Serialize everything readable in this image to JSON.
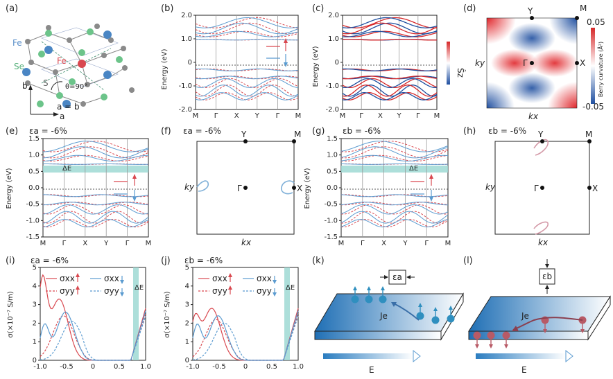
{
  "panels": {
    "a": {
      "label": "(a)",
      "fe_up": "Fe",
      "fe_down": "Fe",
      "se": "Se",
      "s": "S",
      "theta": "θ=90°",
      "b": "b",
      "a": "a",
      "eq": "a = b"
    },
    "b": {
      "label": "(b)",
      "ylabel": "Energy (eV)",
      "yticks": [
        "2.0",
        "1.0",
        "0",
        "-1.0",
        "-2.0"
      ],
      "xticks": [
        "M",
        "Γ",
        "X",
        "Y",
        "Γ",
        "M"
      ]
    },
    "c": {
      "label": "(c)",
      "ylabel": "Energy (eV)",
      "yticks": [
        "2.0",
        "1.0",
        "0",
        "-1.0",
        "-2.0"
      ],
      "xticks": [
        "M",
        "Γ",
        "X",
        "Y",
        "Γ",
        "M"
      ],
      "cbar_label": "Ŝz"
    },
    "d": {
      "label": "(d)",
      "Y": "Y",
      "M": "M",
      "G": "Γ",
      "X": "X",
      "ky": "ky",
      "kx": "kx",
      "cbar_max": "0.05",
      "cbar_min": "-0.05",
      "cbar_label": "Berry curvature (Å²)"
    },
    "e": {
      "label": "(e)",
      "strain": "εa = -6%",
      "ylabel": "Energy (eV)",
      "yticks": [
        "1.5",
        "1.0",
        "0.5",
        "0.0",
        "-0.5",
        "-1.0",
        "-1.5"
      ],
      "xticks": [
        "M",
        "Γ",
        "X",
        "Y",
        "Γ",
        "M"
      ],
      "dE": "ΔE"
    },
    "f": {
      "label": "(f)",
      "strain": "εa = -6%",
      "Y": "Y",
      "M": "M",
      "G": "Γ",
      "X": "X",
      "ky": "ky",
      "kx": "kx"
    },
    "g": {
      "label": "(g)",
      "strain": "εb = -6%",
      "ylabel": "Energy (eV)",
      "yticks": [
        "1.5",
        "1.0",
        "0.5",
        "0.0",
        "-0.5",
        "-1.0",
        "-1.5"
      ],
      "xticks": [
        "M",
        "Γ",
        "X",
        "Y",
        "Γ",
        "M"
      ],
      "dE": "ΔE"
    },
    "h": {
      "label": "(h)",
      "strain": "εb = -6%",
      "Y": "Y",
      "M": "M",
      "G": "Γ",
      "X": "X",
      "ky": "ky",
      "kx": "kx"
    },
    "i": {
      "label": "(i)",
      "strain": "εa = -6%",
      "ylabel": "σ(×10⁻⁷ S/m)",
      "yticks": [
        "5",
        "4",
        "3",
        "2",
        "1",
        "0"
      ],
      "xticks": [
        "-1.0",
        "-0.5",
        "0",
        "0.5",
        "1.0"
      ],
      "leg": [
        "σxx",
        "σxx",
        "σyy",
        "σyy"
      ],
      "dE": "ΔE"
    },
    "j": {
      "label": "(j)",
      "strain": "εb = -6%",
      "ylabel": "σ(×10⁻⁷ S/m)",
      "yticks": [
        "5",
        "4",
        "3",
        "2",
        "1",
        "0"
      ],
      "xticks": [
        "-1.0",
        "-0.5",
        "0",
        "0.5",
        "1.0"
      ],
      "leg": [
        "σxx",
        "σxx",
        "σyy",
        "σyy"
      ],
      "dE": "ΔE"
    },
    "k": {
      "label": "(k)",
      "strain": "εa",
      "J": "Je",
      "E": "E"
    },
    "l": {
      "label": "(l)",
      "strain": "εb",
      "J": "Je",
      "E": "E"
    }
  },
  "colors": {
    "red": "#d9484f",
    "blue": "#5b9bd0",
    "teal": "#9fd9d4",
    "purple": "#7d6b8c"
  }
}
